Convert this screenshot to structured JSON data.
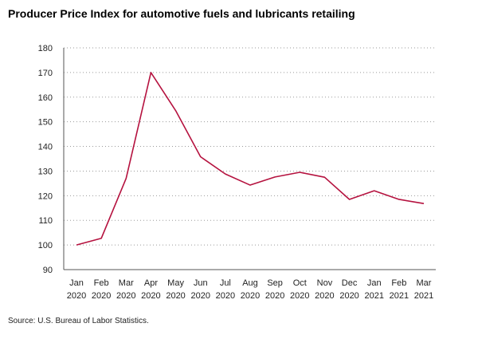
{
  "chart_data": {
    "type": "line",
    "title": "Producer Price Index for automotive fuels and lubricants retailing",
    "xlabel": "",
    "ylabel": "",
    "categories": [
      [
        "Jan",
        "2020"
      ],
      [
        "Feb",
        "2020"
      ],
      [
        "Mar",
        "2020"
      ],
      [
        "Apr",
        "2020"
      ],
      [
        "May",
        "2020"
      ],
      [
        "Jun",
        "2020"
      ],
      [
        "Jul",
        "2020"
      ],
      [
        "Aug",
        "2020"
      ],
      [
        "Sep",
        "2020"
      ],
      [
        "Oct",
        "2020"
      ],
      [
        "Nov",
        "2020"
      ],
      [
        "Dec",
        "2020"
      ],
      [
        "Jan",
        "2021"
      ],
      [
        "Feb",
        "2021"
      ],
      [
        "Mar",
        "2021"
      ]
    ],
    "series": [
      {
        "values": [
          100.0,
          102.7,
          127.0,
          170.0,
          154.5,
          135.8,
          128.8,
          124.3,
          127.6,
          129.5,
          127.5,
          118.5,
          122.0,
          118.5,
          116.8
        ],
        "color": "#b5123f"
      }
    ],
    "ylim": [
      90,
      180
    ],
    "yticks": [
      90,
      100,
      110,
      120,
      130,
      140,
      150,
      160,
      170,
      180
    ],
    "grid": "horizontal-dotted",
    "legend": "none"
  },
  "source_note": "Source: U.S. Bureau of Labor Statistics."
}
